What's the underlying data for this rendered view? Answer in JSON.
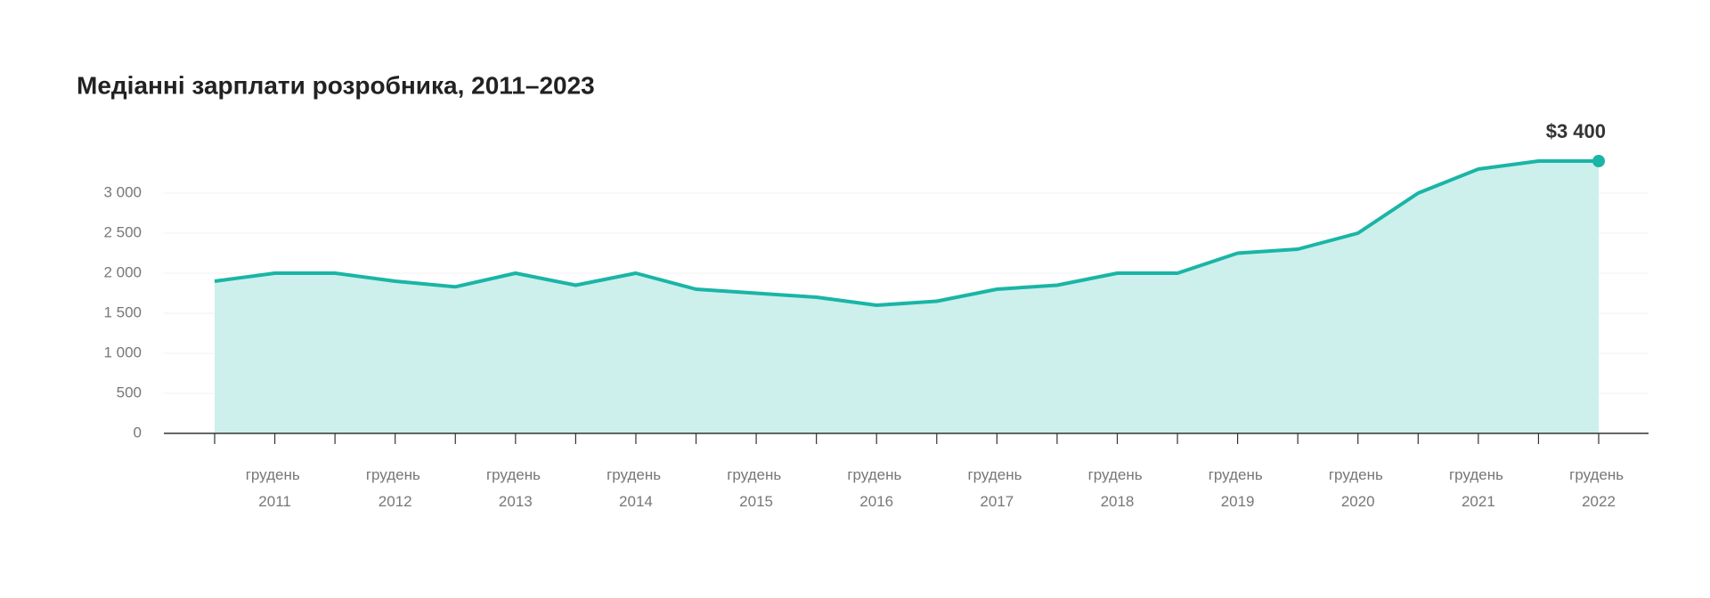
{
  "chart_data": {
    "type": "area",
    "title": "Медіанні зарплати розробника, 2011–2023",
    "categories": [
      null,
      "грудень 2011",
      null,
      "грудень 2012",
      null,
      "грудень 2013",
      null,
      "грудень 2014",
      null,
      "грудень 2015",
      null,
      "грудень 2016",
      null,
      "грудень 2017",
      null,
      "грудень 2018",
      null,
      "грудень 2019",
      null,
      "грудень 2020",
      null,
      "грудень 2021",
      null,
      "грудень 2022"
    ],
    "values": [
      1900,
      2000,
      2000,
      1900,
      1830,
      2000,
      1850,
      2000,
      1800,
      1750,
      1700,
      1600,
      1650,
      1800,
      1850,
      2000,
      2000,
      2250,
      2300,
      2500,
      3000,
      3300,
      3400,
      3400
    ],
    "value_labels": [
      null,
      null,
      null,
      null,
      null,
      null,
      null,
      null,
      null,
      null,
      null,
      null,
      null,
      null,
      null,
      null,
      null,
      null,
      null,
      null,
      null,
      null,
      null,
      "$3 400"
    ],
    "color": "#1ab5a6",
    "fill": "#cdf0ec",
    "ylim": [
      0,
      3500
    ],
    "yticks": [
      0,
      500,
      {
        "value": 1000,
        "label": "1 000"
      },
      {
        "value": 1500,
        "label": "1 500"
      },
      {
        "value": 2000,
        "label": "2 000"
      },
      {
        "value": 2500,
        "label": "2 500"
      },
      {
        "value": 3000,
        "label": "3 000"
      }
    ],
    "grid": true
  }
}
